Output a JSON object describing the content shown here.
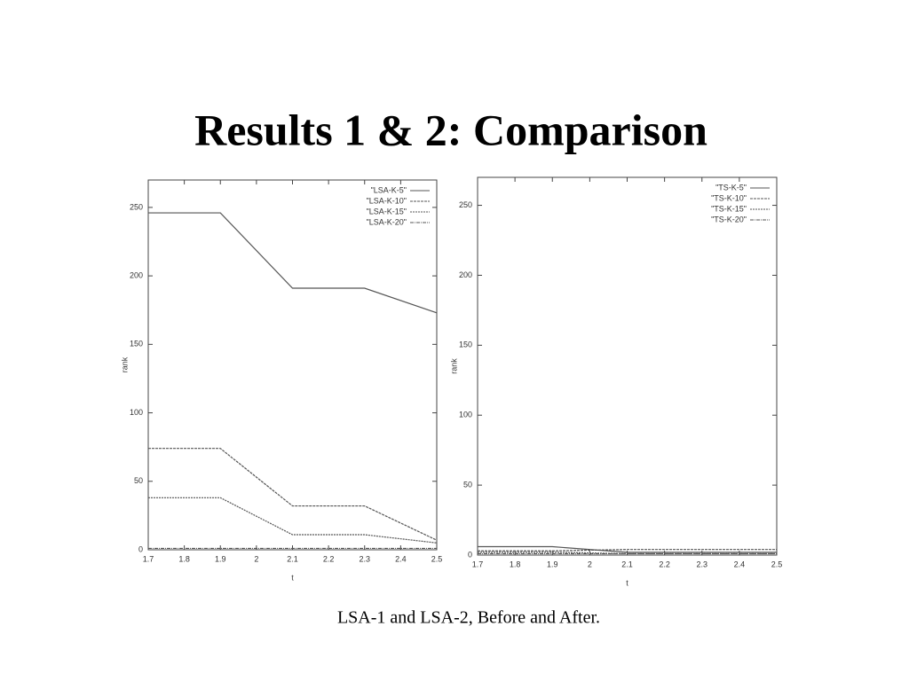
{
  "title": "Results 1 & 2: Comparison",
  "caption": "LSA-1 and LSA-2, Before and After.",
  "chart_data": [
    {
      "type": "line",
      "xlabel": "t",
      "ylabel": "rank",
      "x": [
        1.7,
        1.9,
        2.1,
        2.3,
        2.5
      ],
      "xlim": [
        1.7,
        2.5
      ],
      "xticks": [
        1.7,
        1.8,
        1.9,
        2,
        2.1,
        2.2,
        2.3,
        2.4,
        2.5
      ],
      "ylim": [
        0,
        270
      ],
      "yticks": [
        0,
        50,
        100,
        150,
        200,
        250
      ],
      "legend": "upper-right",
      "series": [
        {
          "name": "\"LSA-K-5\"",
          "color": "#555555",
          "dash": "none",
          "values": [
            246,
            246,
            191,
            191,
            173
          ]
        },
        {
          "name": "\"LSA-K-10\"",
          "color": "#555555",
          "dash": "3 1",
          "values": [
            74,
            74,
            32,
            32,
            7
          ]
        },
        {
          "name": "\"LSA-K-15\"",
          "color": "#555555",
          "dash": "2 1",
          "values": [
            38,
            38,
            11,
            11,
            5
          ]
        },
        {
          "name": "\"LSA-K-20\"",
          "color": "#555555",
          "dash": "4 1 1 1",
          "values": [
            1,
            1,
            1,
            1,
            1
          ]
        }
      ]
    },
    {
      "type": "line",
      "xlabel": "t",
      "ylabel": "rank",
      "x": [
        1.7,
        1.9,
        2.1,
        2.3,
        2.5
      ],
      "xlim": [
        1.7,
        2.5
      ],
      "xticks": [
        1.7,
        1.8,
        1.9,
        2,
        2.1,
        2.2,
        2.3,
        2.4,
        2.5
      ],
      "ylim": [
        0,
        270
      ],
      "yticks": [
        0,
        50,
        100,
        150,
        200,
        250
      ],
      "legend": "upper-right",
      "series": [
        {
          "name": "\"TS-K-5\"",
          "color": "#555555",
          "dash": "none",
          "values": [
            6,
            6,
            2,
            2,
            2
          ]
        },
        {
          "name": "\"TS-K-10\"",
          "color": "#555555",
          "dash": "3 1",
          "values": [
            3,
            3,
            4,
            4,
            4
          ]
        },
        {
          "name": "\"TS-K-15\"",
          "color": "#555555",
          "dash": "2 1",
          "values": [
            2,
            2,
            1,
            1,
            1
          ]
        },
        {
          "name": "\"TS-K-20\"",
          "color": "#555555",
          "dash": "4 1 1 1",
          "values": [
            1,
            1,
            1,
            1,
            1
          ]
        }
      ]
    }
  ]
}
